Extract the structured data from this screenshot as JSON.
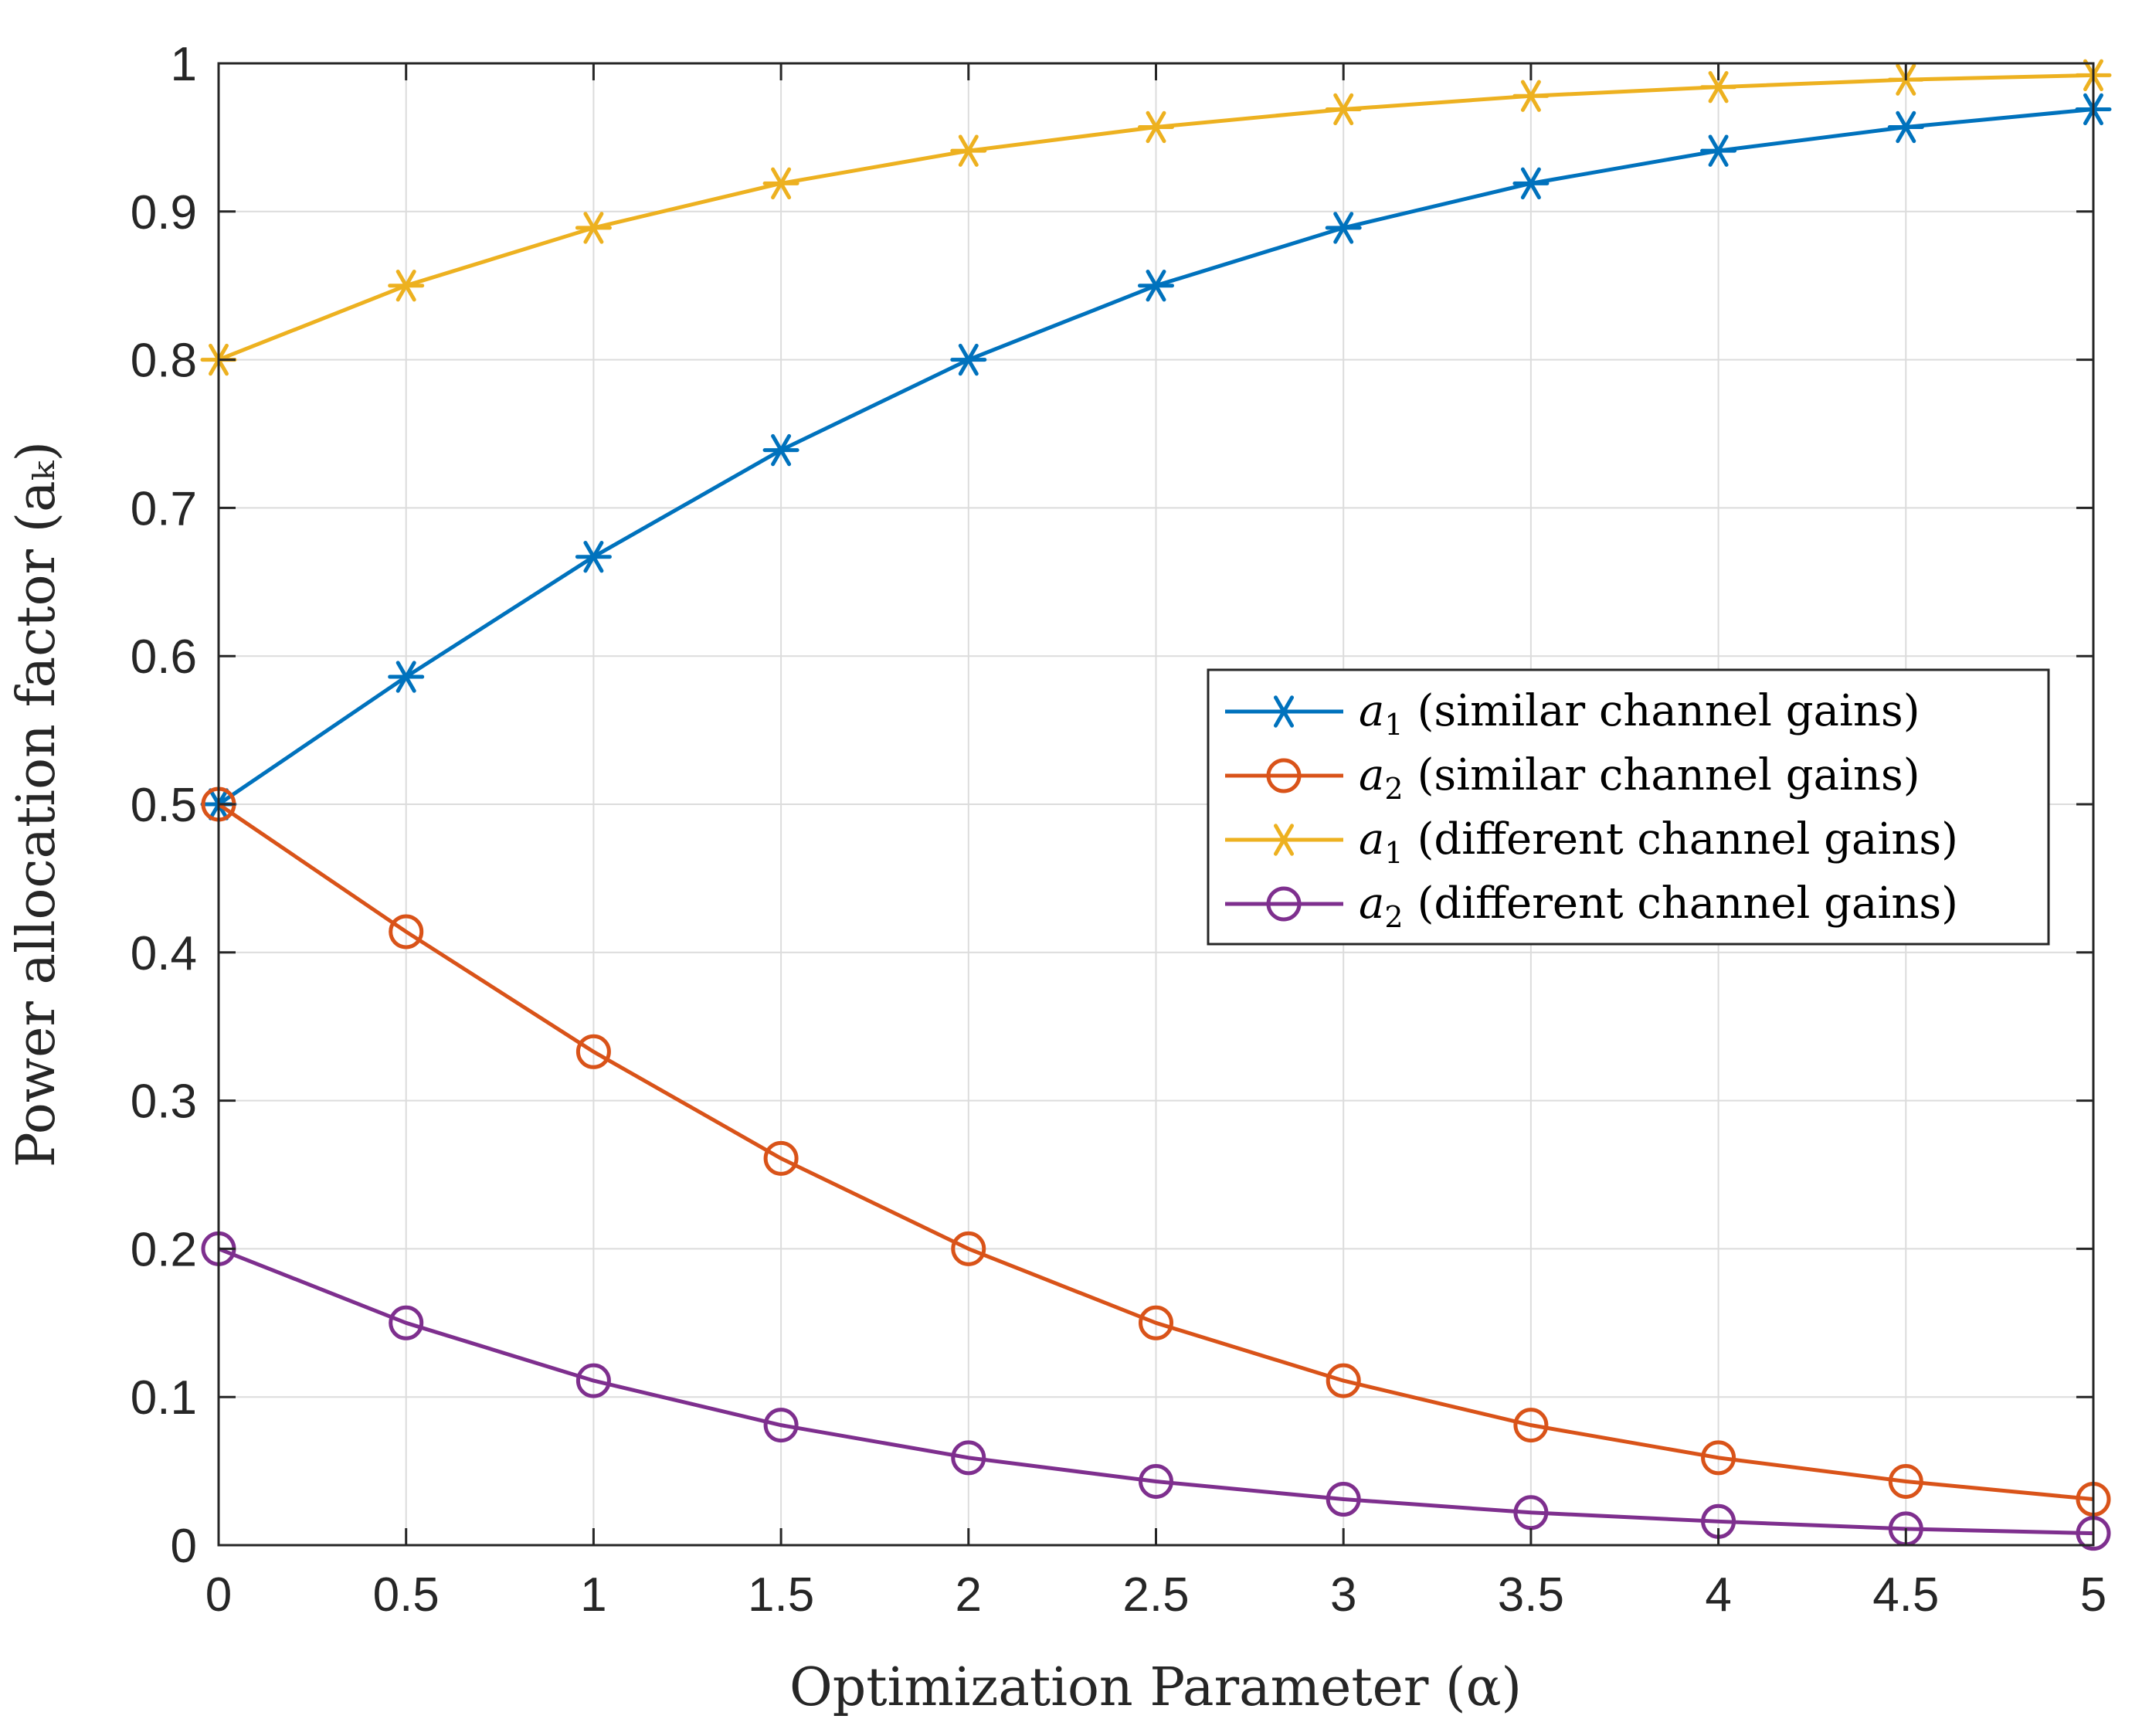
{
  "chart_data": {
    "type": "line",
    "title": "",
    "xlabel": "Optimization Parameter (α)",
    "ylabel": "Power allocation factor (aₖ)",
    "xlim": [
      0,
      5
    ],
    "ylim": [
      0,
      1
    ],
    "grid": true,
    "legend_position": "center-right",
    "x": [
      0,
      0.5,
      1,
      1.5,
      2,
      2.5,
      3,
      3.5,
      4,
      4.5,
      5
    ],
    "xticks": [
      "0",
      "0.5",
      "1",
      "1.5",
      "2",
      "2.5",
      "3",
      "3.5",
      "4",
      "4.5",
      "5"
    ],
    "yticks": [
      "0",
      "0.1",
      "0.2",
      "0.3",
      "0.4",
      "0.5",
      "0.6",
      "0.7",
      "0.8",
      "0.9",
      "1"
    ],
    "series": [
      {
        "name": "a1 (similar channel gains)",
        "symbol": "a",
        "subscript": "1",
        "desc": "(similar channel gains)",
        "color": "#0072BD",
        "marker": "asterisk",
        "values": [
          0.5,
          0.586,
          0.667,
          0.739,
          0.8,
          0.85,
          0.889,
          0.919,
          0.941,
          0.957,
          0.969
        ]
      },
      {
        "name": "a2 (similar channel gains)",
        "symbol": "a",
        "subscript": "2",
        "desc": "(similar channel gains)",
        "color": "#D95319",
        "marker": "circle",
        "values": [
          0.5,
          0.414,
          0.333,
          0.261,
          0.2,
          0.15,
          0.111,
          0.081,
          0.059,
          0.043,
          0.031
        ]
      },
      {
        "name": "a1 (different channel gains)",
        "symbol": "a",
        "subscript": "1",
        "desc": "(different channel gains)",
        "color": "#EDB120",
        "marker": "asterisk",
        "values": [
          0.8,
          0.85,
          0.889,
          0.919,
          0.941,
          0.957,
          0.969,
          0.978,
          0.984,
          0.989,
          0.992
        ]
      },
      {
        "name": "a2 (different channel gains)",
        "symbol": "a",
        "subscript": "2",
        "desc": "(different channel gains)",
        "color": "#7E2F8E",
        "marker": "circle",
        "values": [
          0.2,
          0.15,
          0.111,
          0.081,
          0.059,
          0.043,
          0.031,
          0.022,
          0.016,
          0.011,
          0.008
        ]
      }
    ]
  }
}
